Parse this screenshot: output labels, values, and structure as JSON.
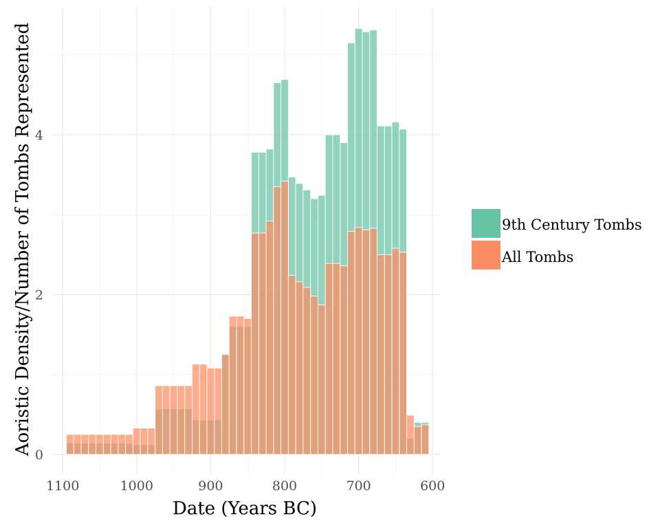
{
  "chart_data": {
    "type": "bar",
    "barmode": "overlay",
    "xlabel": "Date (Years BC)",
    "ylabel": "Aoristic Density/Number of Tombs Represented",
    "x_reversed": true,
    "xlim": [
      1115,
      590
    ],
    "ylim": [
      -0.25,
      5.6
    ],
    "x_ticks": [
      1100,
      1000,
      900,
      800,
      700,
      600
    ],
    "y_ticks": [
      0,
      2,
      4
    ],
    "bin_width": 10,
    "grid": true,
    "legend": "right",
    "x": [
      1090,
      1080,
      1070,
      1060,
      1050,
      1040,
      1030,
      1020,
      1010,
      1000,
      990,
      980,
      970,
      960,
      950,
      940,
      930,
      920,
      910,
      900,
      890,
      880,
      870,
      860,
      850,
      840,
      830,
      820,
      810,
      800,
      790,
      780,
      770,
      760,
      750,
      740,
      730,
      720,
      710,
      700,
      690,
      680,
      670,
      660,
      650,
      640,
      630,
      620,
      610
    ],
    "series": [
      {
        "name": "9th Century Tombs",
        "color": "#66C2A5",
        "values": [
          0.14,
          0.14,
          0.14,
          0.14,
          0.14,
          0.14,
          0.14,
          0.14,
          0.14,
          0.12,
          0.12,
          0.12,
          0.57,
          0.57,
          0.57,
          0.57,
          0.57,
          0.43,
          0.43,
          0.43,
          0.43,
          1.25,
          1.6,
          1.6,
          1.6,
          3.78,
          3.78,
          3.82,
          4.65,
          4.69,
          3.47,
          3.39,
          3.31,
          3.2,
          3.24,
          4.0,
          4.0,
          3.9,
          5.15,
          5.33,
          5.29,
          5.31,
          4.11,
          4.11,
          4.16,
          4.07,
          0.2,
          0.4,
          0.4
        ]
      },
      {
        "name": "All Tombs",
        "color": "#FC8D62",
        "values": [
          0.25,
          0.25,
          0.25,
          0.25,
          0.25,
          0.25,
          0.25,
          0.25,
          0.25,
          0.33,
          0.33,
          0.33,
          0.86,
          0.86,
          0.86,
          0.86,
          0.86,
          1.13,
          1.13,
          1.08,
          1.08,
          1.25,
          1.73,
          1.73,
          1.7,
          2.77,
          2.77,
          2.92,
          3.35,
          3.42,
          2.24,
          2.16,
          2.09,
          1.98,
          1.87,
          2.39,
          2.39,
          2.36,
          2.79,
          2.84,
          2.81,
          2.83,
          2.5,
          2.5,
          2.58,
          2.53,
          0.49,
          0.35,
          0.37
        ]
      }
    ]
  }
}
